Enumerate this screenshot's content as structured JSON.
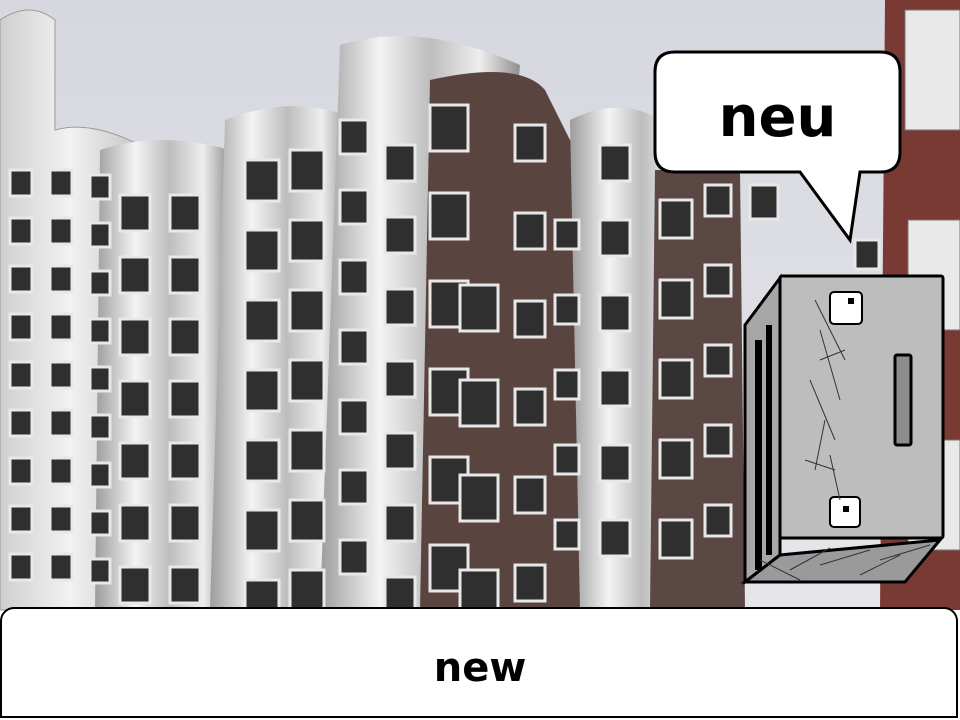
{
  "speech_bubble": {
    "text": "neu"
  },
  "caption": {
    "text": "new"
  },
  "icons": {
    "character": "robot-box-character",
    "bubble": "speech-bubble"
  },
  "colors": {
    "sky": "#dcdde4",
    "steel": "#d6d6d6",
    "brick": "#5a4440",
    "panel": "#ffffff",
    "outline": "#000000",
    "robot_gray": "#bdbdbd"
  }
}
